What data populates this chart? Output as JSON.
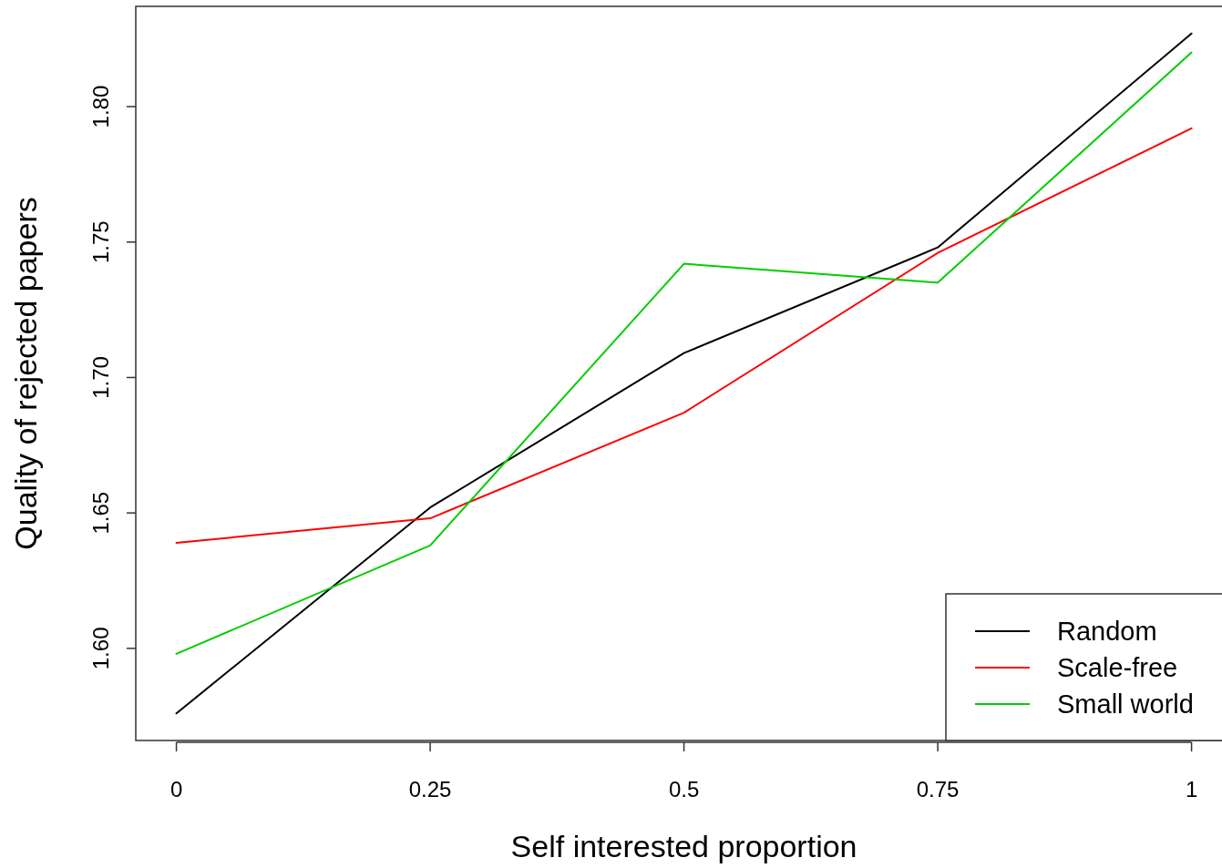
{
  "chart_data": {
    "type": "line",
    "xlabel": "Self interested proportion",
    "ylabel": "Quality of rejected papers",
    "x": [
      0,
      0.25,
      0.5,
      0.75,
      1
    ],
    "series": [
      {
        "name": "Random",
        "color": "#000000",
        "values": [
          1.576,
          1.652,
          1.709,
          1.748,
          1.827
        ]
      },
      {
        "name": "Scale-free",
        "color": "#ff0000",
        "values": [
          1.639,
          1.648,
          1.687,
          1.746,
          1.792
        ]
      },
      {
        "name": "Small world",
        "color": "#00cd00",
        "values": [
          1.598,
          1.638,
          1.742,
          1.735,
          1.82
        ]
      }
    ],
    "xlim": [
      -0.04,
      1.03
    ],
    "ylim": [
      1.566,
      1.837
    ],
    "xticks": [
      0,
      0.25,
      0.5,
      0.75,
      1
    ],
    "yticks": [
      {
        "value": 1.6,
        "label": "1.60"
      },
      {
        "value": 1.65,
        "label": "1.65"
      },
      {
        "value": 1.7,
        "label": "1.70"
      },
      {
        "value": 1.75,
        "label": "1.75"
      },
      {
        "value": 1.8,
        "label": "1.80"
      }
    ],
    "grid": false,
    "legend": "bottom right",
    "marker": "none",
    "line_style": "solid"
  }
}
